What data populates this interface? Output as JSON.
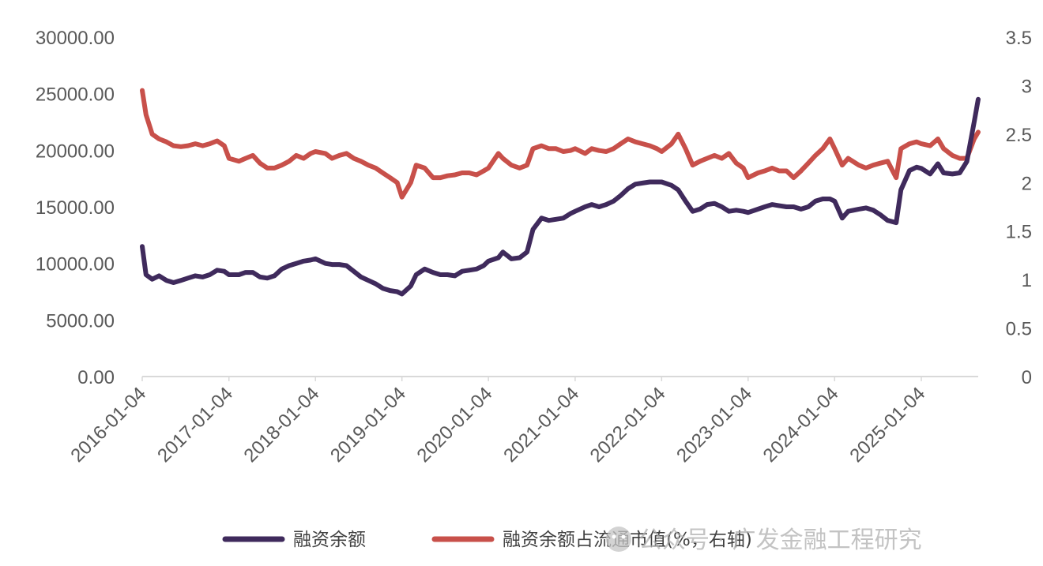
{
  "chart_data": {
    "type": "line",
    "title": "",
    "xlabel": "",
    "ylabel": "",
    "x_ticks": [
      "2016-01-04",
      "2017-01-04",
      "2018-01-04",
      "2019-01-04",
      "2020-01-04",
      "2021-01-04",
      "2022-01-04",
      "2023-01-04",
      "2024-01-04",
      "2025-01-04"
    ],
    "x_range": [
      "2016-01-04",
      "2025-09-01"
    ],
    "y_left": {
      "ticks": [
        "0.00",
        "5000.00",
        "10000.00",
        "15000.00",
        "20000.00",
        "25000.00",
        "30000.00"
      ],
      "ylim": [
        0,
        30000
      ]
    },
    "y_right": {
      "ticks": [
        "0",
        "0.5",
        "1",
        "1.5",
        "2",
        "2.5",
        "3",
        "3.5"
      ],
      "ylim": [
        0,
        3.5
      ]
    },
    "grid": false,
    "legend_position": "bottom",
    "series": [
      {
        "name": "融资余额",
        "axis": "left",
        "color": "#3f2a5c",
        "points": [
          [
            "2016-01-04",
            11500
          ],
          [
            "2016-01-20",
            9000
          ],
          [
            "2016-02-15",
            8600
          ],
          [
            "2016-03-15",
            8900
          ],
          [
            "2016-04-15",
            8500
          ],
          [
            "2016-05-15",
            8300
          ],
          [
            "2016-06-15",
            8500
          ],
          [
            "2016-07-15",
            8700
          ],
          [
            "2016-08-15",
            8900
          ],
          [
            "2016-09-15",
            8800
          ],
          [
            "2016-10-15",
            9000
          ],
          [
            "2016-11-15",
            9400
          ],
          [
            "2016-12-15",
            9300
          ],
          [
            "2017-01-04",
            9000
          ],
          [
            "2017-02-15",
            9000
          ],
          [
            "2017-03-15",
            9200
          ],
          [
            "2017-04-15",
            9200
          ],
          [
            "2017-05-15",
            8800
          ],
          [
            "2017-06-15",
            8700
          ],
          [
            "2017-07-15",
            8900
          ],
          [
            "2017-08-15",
            9500
          ],
          [
            "2017-09-15",
            9800
          ],
          [
            "2017-10-15",
            10000
          ],
          [
            "2017-11-15",
            10200
          ],
          [
            "2017-12-15",
            10300
          ],
          [
            "2018-01-04",
            10400
          ],
          [
            "2018-02-15",
            10000
          ],
          [
            "2018-03-15",
            9900
          ],
          [
            "2018-04-15",
            9900
          ],
          [
            "2018-05-15",
            9800
          ],
          [
            "2018-06-15",
            9300
          ],
          [
            "2018-07-15",
            8800
          ],
          [
            "2018-08-15",
            8500
          ],
          [
            "2018-09-15",
            8200
          ],
          [
            "2018-10-15",
            7800
          ],
          [
            "2018-11-15",
            7600
          ],
          [
            "2018-12-15",
            7500
          ],
          [
            "2019-01-04",
            7300
          ],
          [
            "2019-02-10",
            8000
          ],
          [
            "2019-03-05",
            9000
          ],
          [
            "2019-04-10",
            9500
          ],
          [
            "2019-05-15",
            9200
          ],
          [
            "2019-06-15",
            9000
          ],
          [
            "2019-07-15",
            9000
          ],
          [
            "2019-08-15",
            8900
          ],
          [
            "2019-09-15",
            9300
          ],
          [
            "2019-10-15",
            9400
          ],
          [
            "2019-11-15",
            9500
          ],
          [
            "2019-12-15",
            9800
          ],
          [
            "2020-01-04",
            10200
          ],
          [
            "2020-02-15",
            10500
          ],
          [
            "2020-03-05",
            11000
          ],
          [
            "2020-04-10",
            10400
          ],
          [
            "2020-05-15",
            10500
          ],
          [
            "2020-06-15",
            11000
          ],
          [
            "2020-07-10",
            13000
          ],
          [
            "2020-08-15",
            14000
          ],
          [
            "2020-09-15",
            13800
          ],
          [
            "2020-10-15",
            13900
          ],
          [
            "2020-11-15",
            14000
          ],
          [
            "2020-12-15",
            14400
          ],
          [
            "2021-01-04",
            14600
          ],
          [
            "2021-02-15",
            15000
          ],
          [
            "2021-03-15",
            15200
          ],
          [
            "2021-04-15",
            15000
          ],
          [
            "2021-05-15",
            15200
          ],
          [
            "2021-06-15",
            15500
          ],
          [
            "2021-07-15",
            16000
          ],
          [
            "2021-08-15",
            16600
          ],
          [
            "2021-09-15",
            17000
          ],
          [
            "2021-10-15",
            17100
          ],
          [
            "2021-11-15",
            17200
          ],
          [
            "2021-12-15",
            17200
          ],
          [
            "2022-01-04",
            17200
          ],
          [
            "2022-02-15",
            16900
          ],
          [
            "2022-03-15",
            16500
          ],
          [
            "2022-04-15",
            15500
          ],
          [
            "2022-05-15",
            14600
          ],
          [
            "2022-06-15",
            14800
          ],
          [
            "2022-07-15",
            15200
          ],
          [
            "2022-08-15",
            15300
          ],
          [
            "2022-09-15",
            15000
          ],
          [
            "2022-10-15",
            14600
          ],
          [
            "2022-11-15",
            14700
          ],
          [
            "2022-12-15",
            14600
          ],
          [
            "2023-01-04",
            14500
          ],
          [
            "2023-02-15",
            14800
          ],
          [
            "2023-03-15",
            15000
          ],
          [
            "2023-04-15",
            15200
          ],
          [
            "2023-05-15",
            15100
          ],
          [
            "2023-06-15",
            15000
          ],
          [
            "2023-07-15",
            15000
          ],
          [
            "2023-08-15",
            14800
          ],
          [
            "2023-09-15",
            15000
          ],
          [
            "2023-10-15",
            15500
          ],
          [
            "2023-11-15",
            15700
          ],
          [
            "2023-12-15",
            15700
          ],
          [
            "2024-01-04",
            15500
          ],
          [
            "2024-02-05",
            14000
          ],
          [
            "2024-03-01",
            14600
          ],
          [
            "2024-04-15",
            14800
          ],
          [
            "2024-05-15",
            14900
          ],
          [
            "2024-06-15",
            14700
          ],
          [
            "2024-07-15",
            14300
          ],
          [
            "2024-08-15",
            13800
          ],
          [
            "2024-09-20",
            13600
          ],
          [
            "2024-10-10",
            16500
          ],
          [
            "2024-11-15",
            18200
          ],
          [
            "2024-12-15",
            18500
          ],
          [
            "2025-01-04",
            18400
          ],
          [
            "2025-02-10",
            17900
          ],
          [
            "2025-03-15",
            18800
          ],
          [
            "2025-04-08",
            18000
          ],
          [
            "2025-05-15",
            17900
          ],
          [
            "2025-06-15",
            18000
          ],
          [
            "2025-07-15",
            19000
          ],
          [
            "2025-08-15",
            22500
          ],
          [
            "2025-09-01",
            24500
          ]
        ]
      },
      {
        "name": "融资余额占流通市值(%，右轴)",
        "axis": "right",
        "color": "#c8504a",
        "points": [
          [
            "2016-01-04",
            2.95
          ],
          [
            "2016-01-20",
            2.7
          ],
          [
            "2016-02-15",
            2.5
          ],
          [
            "2016-03-15",
            2.45
          ],
          [
            "2016-04-15",
            2.42
          ],
          [
            "2016-05-15",
            2.38
          ],
          [
            "2016-06-15",
            2.37
          ],
          [
            "2016-07-15",
            2.38
          ],
          [
            "2016-08-15",
            2.4
          ],
          [
            "2016-09-15",
            2.38
          ],
          [
            "2016-10-15",
            2.4
          ],
          [
            "2016-11-15",
            2.43
          ],
          [
            "2016-12-15",
            2.38
          ],
          [
            "2017-01-04",
            2.25
          ],
          [
            "2017-02-15",
            2.22
          ],
          [
            "2017-03-15",
            2.25
          ],
          [
            "2017-04-15",
            2.28
          ],
          [
            "2017-05-15",
            2.2
          ],
          [
            "2017-06-15",
            2.15
          ],
          [
            "2017-07-15",
            2.15
          ],
          [
            "2017-08-15",
            2.18
          ],
          [
            "2017-09-15",
            2.22
          ],
          [
            "2017-10-15",
            2.28
          ],
          [
            "2017-11-15",
            2.25
          ],
          [
            "2017-12-15",
            2.3
          ],
          [
            "2018-01-04",
            2.32
          ],
          [
            "2018-02-15",
            2.3
          ],
          [
            "2018-03-15",
            2.25
          ],
          [
            "2018-04-15",
            2.28
          ],
          [
            "2018-05-15",
            2.3
          ],
          [
            "2018-06-15",
            2.25
          ],
          [
            "2018-07-15",
            2.22
          ],
          [
            "2018-08-15",
            2.18
          ],
          [
            "2018-09-15",
            2.15
          ],
          [
            "2018-10-15",
            2.1
          ],
          [
            "2018-11-15",
            2.05
          ],
          [
            "2018-12-15",
            2.0
          ],
          [
            "2019-01-04",
            1.85
          ],
          [
            "2019-02-10",
            2.0
          ],
          [
            "2019-03-05",
            2.18
          ],
          [
            "2019-04-10",
            2.15
          ],
          [
            "2019-05-15",
            2.05
          ],
          [
            "2019-06-15",
            2.05
          ],
          [
            "2019-07-15",
            2.07
          ],
          [
            "2019-08-15",
            2.08
          ],
          [
            "2019-09-15",
            2.1
          ],
          [
            "2019-10-15",
            2.1
          ],
          [
            "2019-11-15",
            2.08
          ],
          [
            "2019-12-15",
            2.12
          ],
          [
            "2020-01-04",
            2.15
          ],
          [
            "2020-02-15",
            2.3
          ],
          [
            "2020-03-05",
            2.25
          ],
          [
            "2020-04-10",
            2.18
          ],
          [
            "2020-05-15",
            2.15
          ],
          [
            "2020-06-15",
            2.18
          ],
          [
            "2020-07-10",
            2.35
          ],
          [
            "2020-08-15",
            2.38
          ],
          [
            "2020-09-15",
            2.35
          ],
          [
            "2020-10-15",
            2.35
          ],
          [
            "2020-11-15",
            2.32
          ],
          [
            "2020-12-15",
            2.33
          ],
          [
            "2021-01-04",
            2.35
          ],
          [
            "2021-02-15",
            2.3
          ],
          [
            "2021-03-15",
            2.35
          ],
          [
            "2021-04-15",
            2.33
          ],
          [
            "2021-05-15",
            2.32
          ],
          [
            "2021-06-15",
            2.35
          ],
          [
            "2021-07-15",
            2.4
          ],
          [
            "2021-08-15",
            2.45
          ],
          [
            "2021-09-15",
            2.42
          ],
          [
            "2021-10-15",
            2.4
          ],
          [
            "2021-11-15",
            2.38
          ],
          [
            "2021-12-15",
            2.35
          ],
          [
            "2022-01-04",
            2.32
          ],
          [
            "2022-02-15",
            2.4
          ],
          [
            "2022-03-15",
            2.5
          ],
          [
            "2022-04-15",
            2.35
          ],
          [
            "2022-05-15",
            2.18
          ],
          [
            "2022-06-15",
            2.22
          ],
          [
            "2022-07-15",
            2.25
          ],
          [
            "2022-08-15",
            2.28
          ],
          [
            "2022-09-15",
            2.25
          ],
          [
            "2022-10-15",
            2.3
          ],
          [
            "2022-11-15",
            2.2
          ],
          [
            "2022-12-15",
            2.15
          ],
          [
            "2023-01-04",
            2.05
          ],
          [
            "2023-02-15",
            2.1
          ],
          [
            "2023-03-15",
            2.12
          ],
          [
            "2023-04-15",
            2.15
          ],
          [
            "2023-05-15",
            2.12
          ],
          [
            "2023-06-15",
            2.12
          ],
          [
            "2023-07-15",
            2.05
          ],
          [
            "2023-08-15",
            2.12
          ],
          [
            "2023-09-15",
            2.2
          ],
          [
            "2023-10-15",
            2.28
          ],
          [
            "2023-11-15",
            2.35
          ],
          [
            "2023-12-15",
            2.45
          ],
          [
            "2024-01-04",
            2.35
          ],
          [
            "2024-02-05",
            2.18
          ],
          [
            "2024-03-01",
            2.25
          ],
          [
            "2024-04-15",
            2.18
          ],
          [
            "2024-05-15",
            2.15
          ],
          [
            "2024-06-15",
            2.18
          ],
          [
            "2024-07-15",
            2.2
          ],
          [
            "2024-08-15",
            2.22
          ],
          [
            "2024-09-20",
            2.05
          ],
          [
            "2024-10-10",
            2.35
          ],
          [
            "2024-11-15",
            2.4
          ],
          [
            "2024-12-15",
            2.42
          ],
          [
            "2025-01-04",
            2.4
          ],
          [
            "2025-02-10",
            2.38
          ],
          [
            "2025-03-15",
            2.45
          ],
          [
            "2025-04-08",
            2.35
          ],
          [
            "2025-05-15",
            2.28
          ],
          [
            "2025-06-15",
            2.25
          ],
          [
            "2025-07-15",
            2.25
          ],
          [
            "2025-08-15",
            2.45
          ],
          [
            "2025-09-01",
            2.52
          ]
        ]
      }
    ]
  },
  "watermark": "公众号 · 广发金融工程研究"
}
